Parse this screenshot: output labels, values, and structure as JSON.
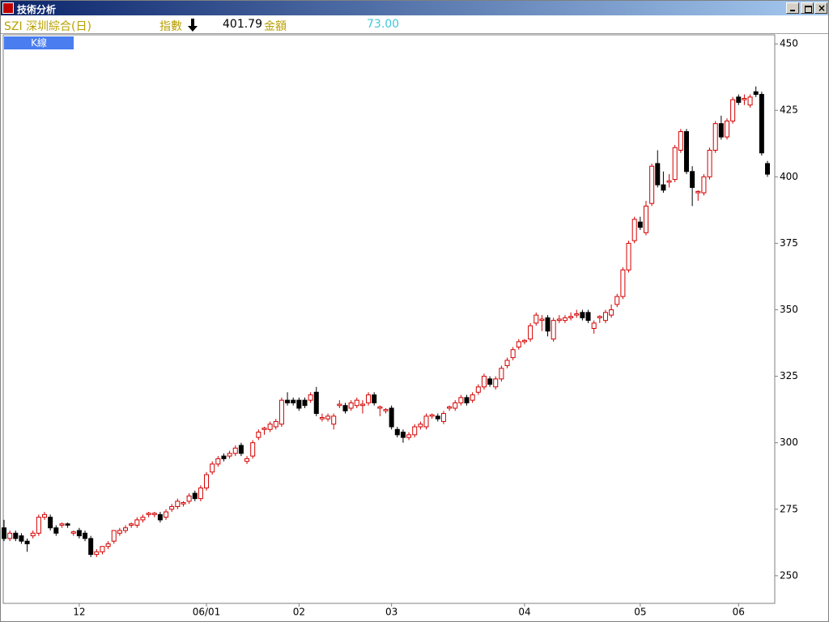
{
  "window_title": "技術分析",
  "header": {
    "symbol": "SZI 深圳綜合(日)",
    "index_label": "指數",
    "index_value": "401.79",
    "amount_label": "金額",
    "amount_value": "73.00"
  },
  "tab": "K線",
  "chart_data": {
    "type": "candlestick",
    "categories": [
      null,
      null,
      null,
      null,
      null,
      null,
      null,
      null,
      null,
      null,
      null,
      null,
      null,
      "12",
      null,
      null,
      null,
      null,
      null,
      null,
      null,
      null,
      null,
      null,
      null,
      null,
      null,
      null,
      null,
      null,
      null,
      null,
      null,
      null,
      null,
      "06/01",
      null,
      null,
      null,
      null,
      null,
      null,
      null,
      null,
      null,
      null,
      null,
      null,
      null,
      null,
      null,
      "02",
      null,
      null,
      null,
      null,
      null,
      null,
      null,
      null,
      null,
      null,
      null,
      null,
      null,
      null,
      null,
      "03",
      null,
      null,
      null,
      null,
      null,
      null,
      null,
      null,
      null,
      null,
      null,
      null,
      null,
      null,
      null,
      null,
      null,
      null,
      null,
      null,
      null,
      null,
      "04",
      null,
      null,
      null,
      null,
      null,
      null,
      null,
      null,
      null,
      null,
      null,
      null,
      null,
      null,
      null,
      null,
      null,
      null,
      null,
      "05",
      null,
      null,
      null,
      null,
      null,
      null,
      null,
      null,
      null,
      null,
      null,
      null,
      null,
      null,
      null,
      null,
      "06",
      null,
      null,
      null,
      null,
      null
    ],
    "series": [
      {
        "up_color": "#d40000",
        "down_color": "#000000",
        "values": [
          [
            268,
            271,
            263,
            264
          ],
          [
            264,
            267,
            263,
            266
          ],
          [
            266,
            267,
            263,
            264
          ],
          [
            265,
            266,
            262,
            263
          ],
          [
            263,
            264,
            259,
            262
          ],
          [
            265,
            267,
            264,
            266
          ],
          [
            266,
            273,
            265,
            272
          ],
          [
            272,
            274,
            271,
            273
          ],
          [
            272,
            273,
            267,
            268
          ],
          [
            268,
            269,
            265,
            266
          ],
          [
            269,
            270,
            268,
            269.5
          ],
          [
            269.5,
            270,
            268,
            269
          ],
          [
            266,
            267,
            265,
            266.5
          ],
          [
            267,
            268,
            264,
            265
          ],
          [
            266,
            267,
            263,
            264
          ],
          [
            264,
            265,
            257,
            258
          ],
          [
            258,
            260,
            257,
            259
          ],
          [
            259,
            261,
            258,
            261
          ],
          [
            261,
            263,
            260,
            262
          ],
          [
            263,
            267,
            262,
            267
          ],
          [
            266,
            268,
            265,
            267
          ],
          [
            267,
            269,
            266,
            268
          ],
          [
            269,
            270,
            268,
            269.5
          ],
          [
            269,
            272,
            268,
            271
          ],
          [
            271,
            273,
            270,
            272
          ],
          [
            273,
            274,
            272,
            273.5
          ],
          [
            273,
            274,
            272,
            273.5
          ],
          [
            273,
            274,
            270,
            271
          ],
          [
            272,
            275,
            271,
            274
          ],
          [
            275,
            277,
            274,
            276
          ],
          [
            276,
            279,
            275,
            278
          ],
          [
            277,
            278,
            276,
            277.5
          ],
          [
            278,
            281,
            277,
            280
          ],
          [
            281,
            282,
            278,
            279
          ],
          [
            279,
            284,
            278,
            283
          ],
          [
            283,
            289,
            282,
            288
          ],
          [
            289,
            293,
            288,
            292
          ],
          [
            292,
            295,
            291,
            294
          ],
          [
            295,
            296,
            293,
            294
          ],
          [
            295,
            297,
            294,
            296
          ],
          [
            296,
            299,
            295,
            298
          ],
          [
            299,
            300,
            295,
            296
          ],
          [
            293,
            295,
            292,
            294
          ],
          [
            295,
            301,
            294,
            300
          ],
          [
            302,
            305,
            301,
            304
          ],
          [
            305,
            306,
            303,
            305.5
          ],
          [
            305,
            308,
            304,
            307
          ],
          [
            306,
            309,
            305,
            308
          ],
          [
            307,
            317,
            306,
            316
          ],
          [
            316,
            319,
            314,
            315
          ],
          [
            316,
            317,
            314,
            315
          ],
          [
            316,
            317,
            312,
            313
          ],
          [
            316,
            317,
            313,
            314
          ],
          [
            316,
            319,
            315,
            318
          ],
          [
            319,
            321,
            310,
            311
          ],
          [
            309,
            311,
            308,
            309.5
          ],
          [
            309,
            311,
            308,
            310
          ],
          [
            307,
            311,
            305,
            310
          ],
          [
            314,
            316,
            313,
            314.5
          ],
          [
            314,
            315,
            311,
            312
          ],
          [
            313,
            316,
            312,
            315
          ],
          [
            314,
            317,
            313,
            316
          ],
          [
            314,
            316,
            311,
            314.5
          ],
          [
            315,
            319,
            314,
            318
          ],
          [
            318,
            319,
            314,
            315
          ],
          [
            313,
            314,
            310,
            313.5
          ],
          [
            312,
            313,
            311,
            312.5
          ],
          [
            313,
            314,
            305,
            306
          ],
          [
            305,
            306,
            302,
            303
          ],
          [
            304,
            305,
            300,
            302
          ],
          [
            302,
            304,
            301,
            303
          ],
          [
            303,
            307,
            302,
            306
          ],
          [
            306,
            308,
            305,
            307
          ],
          [
            306,
            311,
            305,
            310
          ],
          [
            310,
            311,
            309,
            310.5
          ],
          [
            310,
            311,
            308,
            309
          ],
          [
            308,
            312,
            307,
            311
          ],
          [
            313,
            314,
            312,
            313.5
          ],
          [
            313,
            316,
            312,
            315
          ],
          [
            315,
            318,
            314,
            317
          ],
          [
            317,
            318,
            314,
            315
          ],
          [
            316,
            319,
            315,
            318
          ],
          [
            319,
            322,
            318,
            321
          ],
          [
            321,
            326,
            320,
            325
          ],
          [
            324,
            325,
            321,
            322
          ],
          [
            321,
            325,
            320,
            324
          ],
          [
            324,
            329,
            323,
            328
          ],
          [
            329,
            332,
            328,
            331
          ],
          [
            332,
            336,
            331,
            335
          ],
          [
            336,
            339,
            335,
            338
          ],
          [
            338,
            339,
            337,
            338.5
          ],
          [
            339,
            345,
            338,
            344
          ],
          [
            345,
            349,
            344,
            348
          ],
          [
            346,
            348,
            342,
            346.5
          ],
          [
            347,
            348,
            340,
            342
          ],
          [
            339,
            347,
            338,
            346
          ],
          [
            346,
            348,
            345,
            346.5
          ],
          [
            346,
            348,
            345,
            347
          ],
          [
            347,
            349,
            346,
            347.5
          ],
          [
            348,
            350,
            347,
            348.5
          ],
          [
            349,
            350,
            346,
            347
          ],
          [
            349,
            350,
            345,
            346
          ],
          [
            343,
            346,
            341,
            345
          ],
          [
            347,
            348,
            345,
            347.5
          ],
          [
            346,
            350,
            345,
            349
          ],
          [
            348,
            352,
            347,
            350
          ],
          [
            352,
            356,
            351,
            355
          ],
          [
            355,
            366,
            354,
            365
          ],
          [
            365,
            376,
            364,
            375
          ],
          [
            376,
            385,
            375,
            384
          ],
          [
            383,
            385,
            380,
            381
          ],
          [
            379,
            391,
            378,
            389
          ],
          [
            390,
            405,
            389,
            404
          ],
          [
            405,
            410,
            396,
            397
          ],
          [
            397,
            402,
            394,
            395
          ],
          [
            398,
            401,
            396,
            398.5
          ],
          [
            399,
            412,
            398,
            411
          ],
          [
            410,
            418,
            409,
            417
          ],
          [
            417,
            418,
            401,
            402
          ],
          [
            402,
            404,
            389,
            396
          ],
          [
            394,
            395,
            391,
            394.5
          ],
          [
            394,
            401,
            393,
            400
          ],
          [
            400,
            411,
            399,
            410
          ],
          [
            410,
            421,
            409,
            420
          ],
          [
            420,
            423,
            414,
            415
          ],
          [
            415,
            422,
            414,
            421
          ],
          [
            421,
            430,
            420,
            429
          ],
          [
            430,
            431,
            427,
            428
          ],
          [
            429,
            431,
            427,
            429.5
          ],
          [
            427,
            431,
            426,
            430
          ],
          [
            432,
            434,
            430,
            431
          ],
          [
            431,
            432,
            408,
            409
          ],
          [
            405,
            406,
            400,
            401
          ]
        ]
      }
    ],
    "ylim": [
      239.6,
      453.4
    ],
    "yticks": [
      250,
      275,
      300,
      325,
      350,
      375,
      400,
      425,
      450
    ]
  }
}
